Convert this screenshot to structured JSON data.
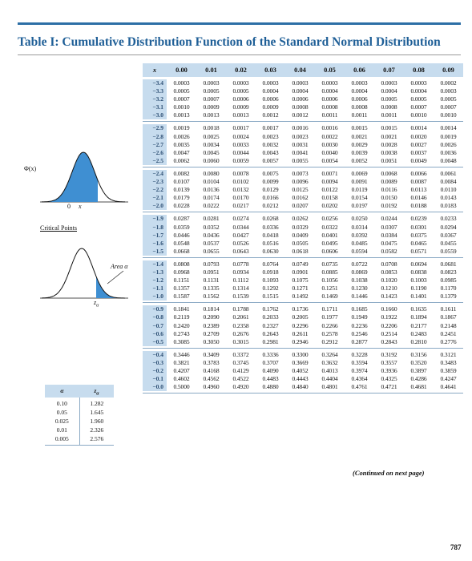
{
  "title": "Table I: Cumulative Distribution Function of the Standard Normal Distribution",
  "table": {
    "x_header": "x",
    "columns": [
      "0.00",
      "0.01",
      "0.02",
      "0.03",
      "0.04",
      "0.05",
      "0.06",
      "0.07",
      "0.08",
      "0.09"
    ],
    "blocks": [
      [
        {
          "x": "−3.4",
          "v": [
            "0.0003",
            "0.0003",
            "0.0003",
            "0.0003",
            "0.0003",
            "0.0003",
            "0.0003",
            "0.0003",
            "0.0003",
            "0.0002"
          ]
        },
        {
          "x": "−3.3",
          "v": [
            "0.0005",
            "0.0005",
            "0.0005",
            "0.0004",
            "0.0004",
            "0.0004",
            "0.0004",
            "0.0004",
            "0.0004",
            "0.0003"
          ]
        },
        {
          "x": "−3.2",
          "v": [
            "0.0007",
            "0.0007",
            "0.0006",
            "0.0006",
            "0.0006",
            "0.0006",
            "0.0006",
            "0.0005",
            "0.0005",
            "0.0005"
          ]
        },
        {
          "x": "−3.1",
          "v": [
            "0.0010",
            "0.0009",
            "0.0009",
            "0.0009",
            "0.0008",
            "0.0008",
            "0.0008",
            "0.0008",
            "0.0007",
            "0.0007"
          ]
        },
        {
          "x": "−3.0",
          "v": [
            "0.0013",
            "0.0013",
            "0.0013",
            "0.0012",
            "0.0012",
            "0.0011",
            "0.0011",
            "0.0011",
            "0.0010",
            "0.0010"
          ]
        }
      ],
      [
        {
          "x": "−2.9",
          "v": [
            "0.0019",
            "0.0018",
            "0.0017",
            "0.0017",
            "0.0016",
            "0.0016",
            "0.0015",
            "0.0015",
            "0.0014",
            "0.0014"
          ]
        },
        {
          "x": "−2.8",
          "v": [
            "0.0026",
            "0.0025",
            "0.0024",
            "0.0023",
            "0.0023",
            "0.0022",
            "0.0021",
            "0.0021",
            "0.0020",
            "0.0019"
          ]
        },
        {
          "x": "−2.7",
          "v": [
            "0.0035",
            "0.0034",
            "0.0033",
            "0.0032",
            "0.0031",
            "0.0030",
            "0.0029",
            "0.0028",
            "0.0027",
            "0.0026"
          ]
        },
        {
          "x": "−2.6",
          "v": [
            "0.0047",
            "0.0045",
            "0.0044",
            "0.0043",
            "0.0041",
            "0.0040",
            "0.0039",
            "0.0038",
            "0.0037",
            "0.0036"
          ]
        },
        {
          "x": "−2.5",
          "v": [
            "0.0062",
            "0.0060",
            "0.0059",
            "0.0057",
            "0.0055",
            "0.0054",
            "0.0052",
            "0.0051",
            "0.0049",
            "0.0048"
          ]
        }
      ],
      [
        {
          "x": "−2.4",
          "v": [
            "0.0082",
            "0.0080",
            "0.0078",
            "0.0075",
            "0.0073",
            "0.0071",
            "0.0069",
            "0.0068",
            "0.0066",
            "0.0061"
          ]
        },
        {
          "x": "−2.3",
          "v": [
            "0.0107",
            "0.0104",
            "0.0102",
            "0.0099",
            "0.0096",
            "0.0094",
            "0.0091",
            "0.0089",
            "0.0087",
            "0.0084"
          ]
        },
        {
          "x": "−2.2",
          "v": [
            "0.0139",
            "0.0136",
            "0.0132",
            "0.0129",
            "0.0125",
            "0.0122",
            "0.0119",
            "0.0116",
            "0.0113",
            "0.0110"
          ]
        },
        {
          "x": "−2.1",
          "v": [
            "0.0179",
            "0.0174",
            "0.0170",
            "0.0166",
            "0.0162",
            "0.0158",
            "0.0154",
            "0.0150",
            "0.0146",
            "0.0143"
          ]
        },
        {
          "x": "−2.0",
          "v": [
            "0.0228",
            "0.0222",
            "0.0217",
            "0.0212",
            "0.0207",
            "0.0202",
            "0.0197",
            "0.0192",
            "0.0188",
            "0.0183"
          ]
        }
      ],
      [
        {
          "x": "−1.9",
          "v": [
            "0.0287",
            "0.0281",
            "0.0274",
            "0.0268",
            "0.0262",
            "0.0256",
            "0.0250",
            "0.0244",
            "0.0239",
            "0.0233"
          ]
        },
        {
          "x": "−1.8",
          "v": [
            "0.0359",
            "0.0352",
            "0.0344",
            "0.0336",
            "0.0329",
            "0.0322",
            "0.0314",
            "0.0307",
            "0.0301",
            "0.0294"
          ]
        },
        {
          "x": "−1.7",
          "v": [
            "0.0446",
            "0.0436",
            "0.0427",
            "0.0418",
            "0.0409",
            "0.0401",
            "0.0392",
            "0.0384",
            "0.0375",
            "0.0367"
          ]
        },
        {
          "x": "−1.6",
          "v": [
            "0.0548",
            "0.0537",
            "0.0526",
            "0.0516",
            "0.0505",
            "0.0495",
            "0.0485",
            "0.0475",
            "0.0465",
            "0.0455"
          ]
        },
        {
          "x": "−1.5",
          "v": [
            "0.0668",
            "0.0655",
            "0.0643",
            "0.0630",
            "0.0618",
            "0.0606",
            "0.0594",
            "0.0582",
            "0.0571",
            "0.0559"
          ]
        }
      ],
      [
        {
          "x": "−1.4",
          "v": [
            "0.0808",
            "0.0793",
            "0.0778",
            "0.0764",
            "0.0749",
            "0.0735",
            "0.0722",
            "0.0708",
            "0.0694",
            "0.0681"
          ]
        },
        {
          "x": "−1.3",
          "v": [
            "0.0968",
            "0.0951",
            "0.0934",
            "0.0918",
            "0.0901",
            "0.0885",
            "0.0869",
            "0.0853",
            "0.0838",
            "0.0823"
          ]
        },
        {
          "x": "−1.2",
          "v": [
            "0.1151",
            "0.1131",
            "0.1112",
            "0.1093",
            "0.1075",
            "0.1056",
            "0.1038",
            "0.1020",
            "0.1003",
            "0.0985"
          ]
        },
        {
          "x": "−1.1",
          "v": [
            "0.1357",
            "0.1335",
            "0.1314",
            "0.1292",
            "0.1271",
            "0.1251",
            "0.1230",
            "0.1210",
            "0.1190",
            "0.1170"
          ]
        },
        {
          "x": "−1.0",
          "v": [
            "0.1587",
            "0.1562",
            "0.1539",
            "0.1515",
            "0.1492",
            "0.1469",
            "0.1446",
            "0.1423",
            "0.1401",
            "0.1379"
          ]
        }
      ],
      [
        {
          "x": "−0.9",
          "v": [
            "0.1841",
            "0.1814",
            "0.1788",
            "0.1762",
            "0.1736",
            "0.1711",
            "0.1685",
            "0.1660",
            "0.1635",
            "0.1611"
          ]
        },
        {
          "x": "−0.8",
          "v": [
            "0.2119",
            "0.2090",
            "0.2061",
            "0.2033",
            "0.2005",
            "0.1977",
            "0.1949",
            "0.1922",
            "0.1894",
            "0.1867"
          ]
        },
        {
          "x": "−0.7",
          "v": [
            "0.2420",
            "0.2389",
            "0.2358",
            "0.2327",
            "0.2296",
            "0.2266",
            "0.2236",
            "0.2206",
            "0.2177",
            "0.2148"
          ]
        },
        {
          "x": "−0.6",
          "v": [
            "0.2743",
            "0.2709",
            "0.2676",
            "0.2643",
            "0.2611",
            "0.2578",
            "0.2546",
            "0.2514",
            "0.2483",
            "0.2451"
          ]
        },
        {
          "x": "−0.5",
          "v": [
            "0.3085",
            "0.3050",
            "0.3015",
            "0.2981",
            "0.2946",
            "0.2912",
            "0.2877",
            "0.2843",
            "0.2810",
            "0.2776"
          ]
        }
      ],
      [
        {
          "x": "−0.4",
          "v": [
            "0.3446",
            "0.3409",
            "0.3372",
            "0.3336",
            "0.3300",
            "0.3264",
            "0.3228",
            "0.3192",
            "0.3156",
            "0.3121"
          ]
        },
        {
          "x": "−0.3",
          "v": [
            "0.3821",
            "0.3783",
            "0.3745",
            "0.3707",
            "0.3669",
            "0.3632",
            "0.3594",
            "0.3557",
            "0.3520",
            "0.3483"
          ]
        },
        {
          "x": "−0.2",
          "v": [
            "0.4207",
            "0.4168",
            "0.4129",
            "0.4090",
            "0.4052",
            "0.4013",
            "0.3974",
            "0.3936",
            "0.3897",
            "0.3859"
          ]
        },
        {
          "x": "−0.1",
          "v": [
            "0.4602",
            "0.4562",
            "0.4522",
            "0.4483",
            "0.4443",
            "0.4404",
            "0.4364",
            "0.4325",
            "0.4286",
            "0.4247"
          ]
        },
        {
          "x": "−0.0",
          "v": [
            "0.5000",
            "0.4960",
            "0.4920",
            "0.4880",
            "0.4840",
            "0.4801",
            "0.4761",
            "0.4721",
            "0.4681",
            "0.4641"
          ]
        }
      ]
    ]
  },
  "figure1": {
    "y_label": "Φ(x)",
    "zero_label": "0",
    "x_label": "x"
  },
  "critical_points_label": "Critical Points",
  "figure2": {
    "area_label": "Area α",
    "z_label": "z",
    "z_sub": "α"
  },
  "alpha_table": {
    "header_alpha": "α",
    "header_z": "z",
    "header_z_sub": "α",
    "alpha_values": [
      "0.10",
      "0.05",
      "0.025",
      "0.01",
      "0.005"
    ],
    "z_values": [
      "1.282",
      "1.645",
      "1.960",
      "2.326",
      "2.576"
    ]
  },
  "continued": "(Continued on next page)",
  "page_number": "787",
  "colors": {
    "accent_blue": "#1f5f97",
    "header_fill": "#c7dcee",
    "curve_fill": "#3f8fd2"
  }
}
